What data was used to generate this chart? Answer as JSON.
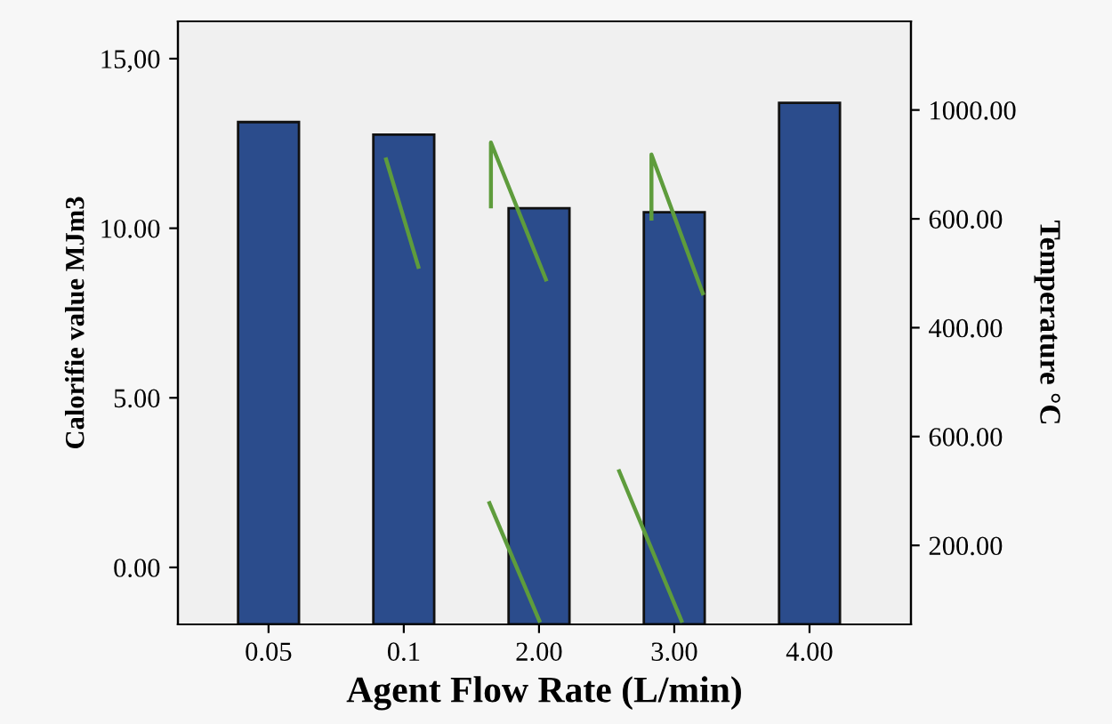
{
  "chart_data": {
    "type": "bar",
    "xlabel": "Agent Flow Rate (L/min)",
    "ylabel": "Calorifie value MJm3",
    "y2label": "Temperature °C",
    "categories": [
      "0.05",
      "0.1",
      "2.00",
      "3.00",
      "4.00"
    ],
    "ylim": [
      -1.68,
      16.1
    ],
    "yticks": [
      {
        "value": 0,
        "label": "0.00"
      },
      {
        "value": 5,
        "label": "5.00"
      },
      {
        "value": 10,
        "label": "10.00"
      },
      {
        "value": 15,
        "label": "15,00"
      }
    ],
    "annotations": [
      "1000.00",
      "600.00",
      "400.00",
      "600.00",
      "200.00"
    ],
    "grid": false,
    "series": [
      {
        "color": "#2b4c8c",
        "base": [
          -1.68,
          -1.68,
          -1.68,
          -1.68,
          -1.68
        ],
        "values": [
          14.81,
          14.44,
          12.27,
          12.15,
          15.38
        ]
      }
    ]
  }
}
